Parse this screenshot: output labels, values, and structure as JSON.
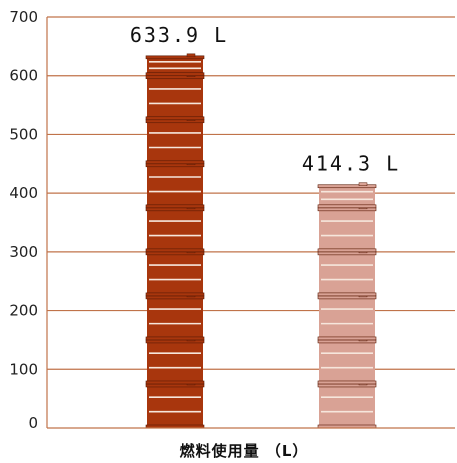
{
  "chart_data": {
    "type": "bar",
    "categories": [
      "",
      ""
    ],
    "values": [
      633.9,
      414.3
    ],
    "value_labels": [
      "633.9 L",
      "414.3 L"
    ],
    "xlabel": "燃料使用量 （L）",
    "ylabel": "",
    "ylim": [
      0,
      700
    ],
    "yticks": [
      0,
      100,
      200,
      300,
      400,
      500,
      600,
      700
    ],
    "grid": true,
    "bar_colors": [
      "#a8360d",
      "#d9a295"
    ],
    "grid_color": "#c0734a",
    "bar_style": "stacked barrels"
  }
}
